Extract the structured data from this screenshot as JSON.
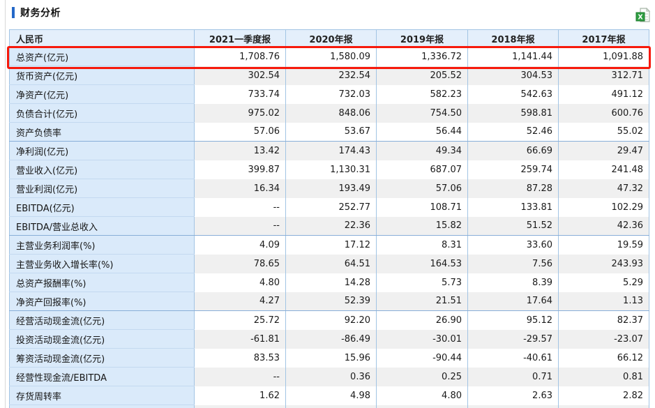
{
  "title": "财务分析",
  "export": {
    "tooltip_label": "导出Excel"
  },
  "colors": {
    "accent": "#2468c8",
    "highlight": "#f7190b",
    "header_bg": "#e4effb",
    "label_bg": "#daeafa",
    "alt_row_bg": "#f0f0f0",
    "grid": "#a2c4e4"
  },
  "table": {
    "columns": [
      "人民币",
      "2021一季度报",
      "2020年报",
      "2019年报",
      "2018年报",
      "2017年报"
    ],
    "rows": [
      {
        "label": "总资产(亿元)",
        "values": [
          "1,708.76",
          "1,580.09",
          "1,336.72",
          "1,141.44",
          "1,091.88"
        ],
        "highlighted": true
      },
      {
        "label": "货币资产(亿元)",
        "values": [
          "302.54",
          "232.54",
          "205.52",
          "304.53",
          "312.71"
        ]
      },
      {
        "label": "净资产(亿元)",
        "values": [
          "733.74",
          "732.03",
          "582.23",
          "542.63",
          "491.12"
        ]
      },
      {
        "label": "负债合计(亿元)",
        "values": [
          "975.02",
          "848.06",
          "754.50",
          "598.81",
          "600.76"
        ]
      },
      {
        "label": "资产负债率",
        "values": [
          "57.06",
          "53.67",
          "56.44",
          "52.46",
          "55.02"
        ],
        "group_end": true
      },
      {
        "label": "净利润(亿元)",
        "values": [
          "13.42",
          "174.43",
          "49.34",
          "66.69",
          "29.47"
        ]
      },
      {
        "label": "营业收入(亿元)",
        "values": [
          "399.87",
          "1,130.31",
          "687.07",
          "259.74",
          "241.48"
        ]
      },
      {
        "label": "营业利润(亿元)",
        "values": [
          "16.34",
          "193.49",
          "57.06",
          "87.28",
          "47.32"
        ]
      },
      {
        "label": "EBITDA(亿元)",
        "values": [
          "--",
          "252.77",
          "108.71",
          "133.81",
          "102.29"
        ]
      },
      {
        "label": "EBITDA/营业总收入",
        "values": [
          "--",
          "22.36",
          "15.82",
          "51.52",
          "42.36"
        ],
        "group_end": true
      },
      {
        "label": "主营业务利润率(%)",
        "values": [
          "4.09",
          "17.12",
          "8.31",
          "33.60",
          "19.59"
        ]
      },
      {
        "label": "主营业务收入增长率(%)",
        "values": [
          "78.65",
          "64.51",
          "164.53",
          "7.56",
          "243.93"
        ]
      },
      {
        "label": "总资产报酬率(%)",
        "values": [
          "4.80",
          "14.28",
          "5.73",
          "8.39",
          "5.29"
        ]
      },
      {
        "label": "净资产回报率(%)",
        "values": [
          "4.27",
          "52.39",
          "21.51",
          "17.64",
          "1.13"
        ],
        "group_end": true
      },
      {
        "label": "经营活动现金流(亿元)",
        "values": [
          "25.72",
          "92.20",
          "26.90",
          "95.12",
          "82.37"
        ]
      },
      {
        "label": "投资活动现金流(亿元)",
        "values": [
          "-61.81",
          "-86.49",
          "-30.01",
          "-29.57",
          "-23.07"
        ]
      },
      {
        "label": "筹资活动现金流(亿元)",
        "values": [
          "83.53",
          "15.96",
          "-90.44",
          "-40.61",
          "66.12"
        ]
      },
      {
        "label": "经营性现金流/EBITDA",
        "values": [
          "--",
          "0.36",
          "0.25",
          "0.71",
          "0.81"
        ]
      },
      {
        "label": "存货周转率",
        "values": [
          "1.62",
          "4.98",
          "4.80",
          "2.63",
          "2.82"
        ]
      },
      {
        "label": "",
        "values": [
          "",
          "",
          "",
          "",
          ""
        ],
        "partial": true
      }
    ]
  }
}
